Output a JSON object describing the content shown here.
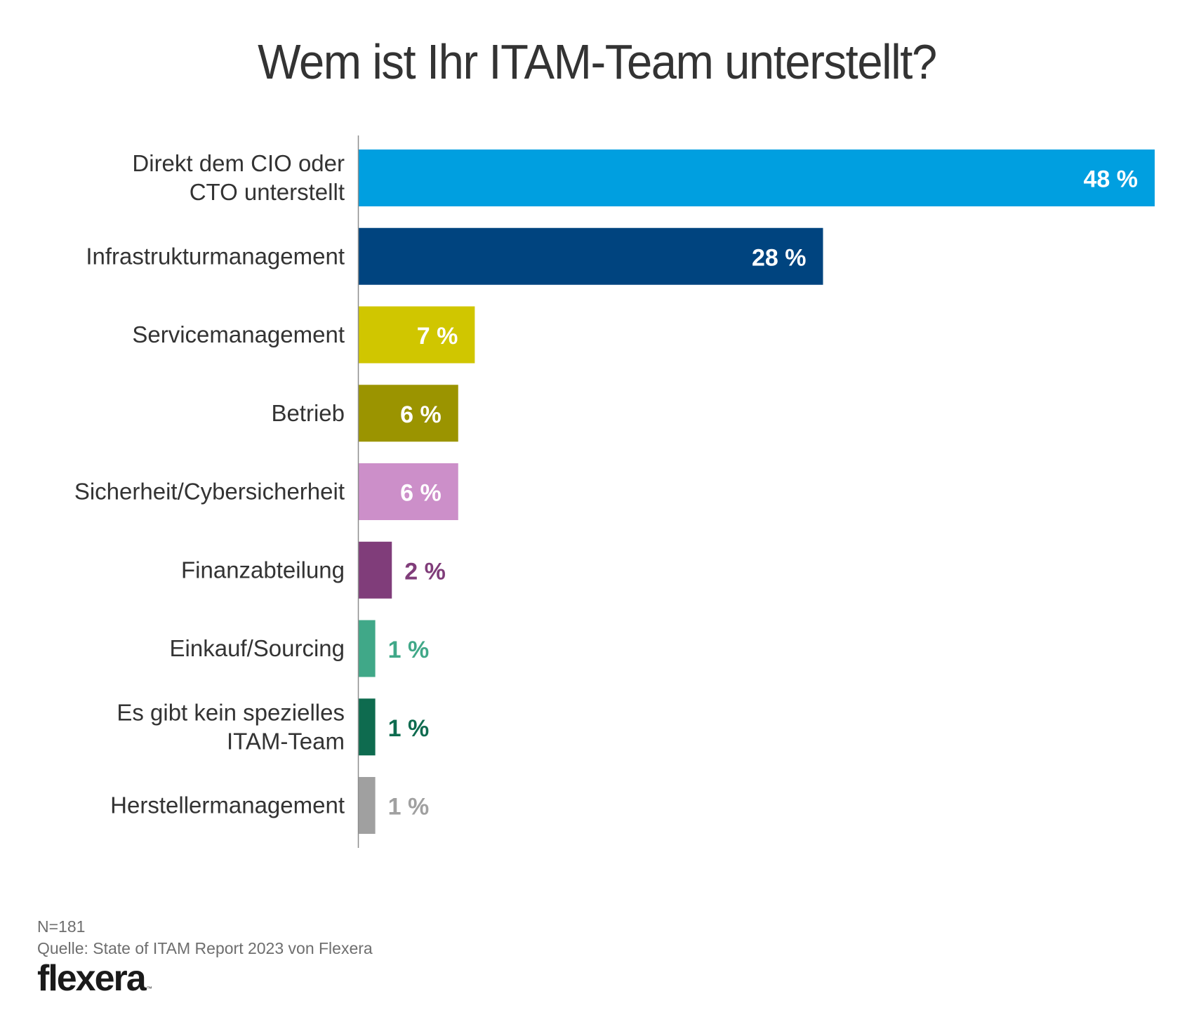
{
  "chart_data": {
    "type": "bar",
    "orientation": "horizontal",
    "title": "Wem ist Ihr ITAM-Team unterstellt?",
    "xlabel": "",
    "ylabel": "",
    "xlim": [
      0,
      48
    ],
    "grid": false,
    "value_suffix": " %",
    "categories": [
      [
        "Direkt dem CIO oder",
        "CTO unterstellt"
      ],
      [
        "Infrastrukturmanagement"
      ],
      [
        "Servicemanagement"
      ],
      [
        "Betrieb"
      ],
      [
        "Sicherheit/Cybersicherheit"
      ],
      [
        "Finanzabteilung"
      ],
      [
        "Einkauf/Sourcing"
      ],
      [
        "Es gibt kein spezielles",
        "ITAM-Team"
      ],
      [
        "Herstellermanagement"
      ]
    ],
    "values": [
      48,
      28,
      7,
      6,
      6,
      2,
      1,
      1,
      1
    ],
    "value_labels": [
      "48 %",
      "28 %",
      "7 %",
      "6 %",
      "6 %",
      "2 %",
      "1 %",
      "1 %",
      "1 %"
    ],
    "colors": [
      "#009fe0",
      "#00447f",
      "#d0c600",
      "#9b9400",
      "#cc8fc9",
      "#803d7a",
      "#40a888",
      "#0e6b4f",
      "#a0a0a0"
    ],
    "label_inside": [
      true,
      true,
      true,
      true,
      true,
      false,
      false,
      false,
      false
    ]
  },
  "footer": {
    "sample_size": "N=181",
    "source": "Quelle: State of ITAM Report 2023 von Flexera"
  },
  "logo": {
    "text": "flexera",
    "trademark": "™"
  }
}
